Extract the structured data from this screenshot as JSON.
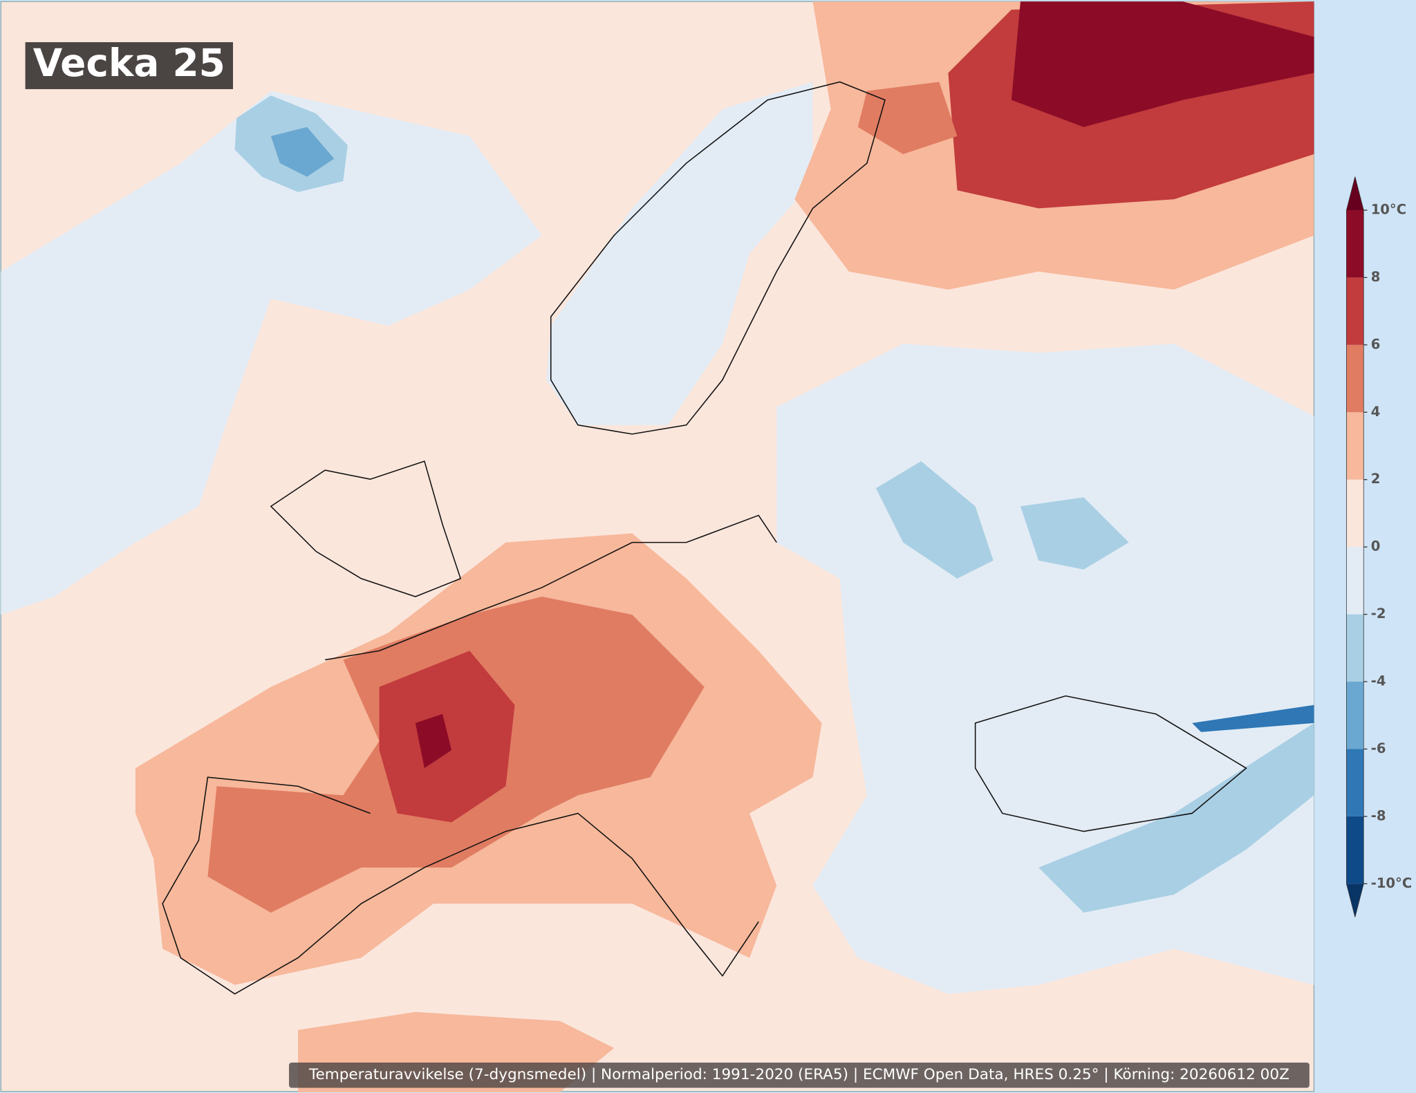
{
  "title": "Vecka 25",
  "caption": "Temperaturavvikelse (7-dygnsmedel) | Normalperiod: 1991-2020 (ERA5) | ECMWF Open Data, HRES 0.25° | Körning: 20260612 00Z",
  "colorbar": {
    "lim": [
      -10,
      10
    ],
    "ticks": [
      {
        "value": -10,
        "label": "-10°C"
      },
      -8,
      -6,
      -4,
      -2,
      0,
      2,
      4,
      6,
      8,
      {
        "value": 10,
        "label": "10°C"
      }
    ],
    "colors": [
      "#0f4a88",
      "#2f77b5",
      "#6aa8d1",
      "#a9cfe4",
      "#e3ecf5",
      "#fbe6dc",
      "#f7b89b",
      "#e07c62",
      "#c23b3d",
      "#8c0c27"
    ],
    "under_color": "#083466",
    "over_color": "#67001f"
  }
}
